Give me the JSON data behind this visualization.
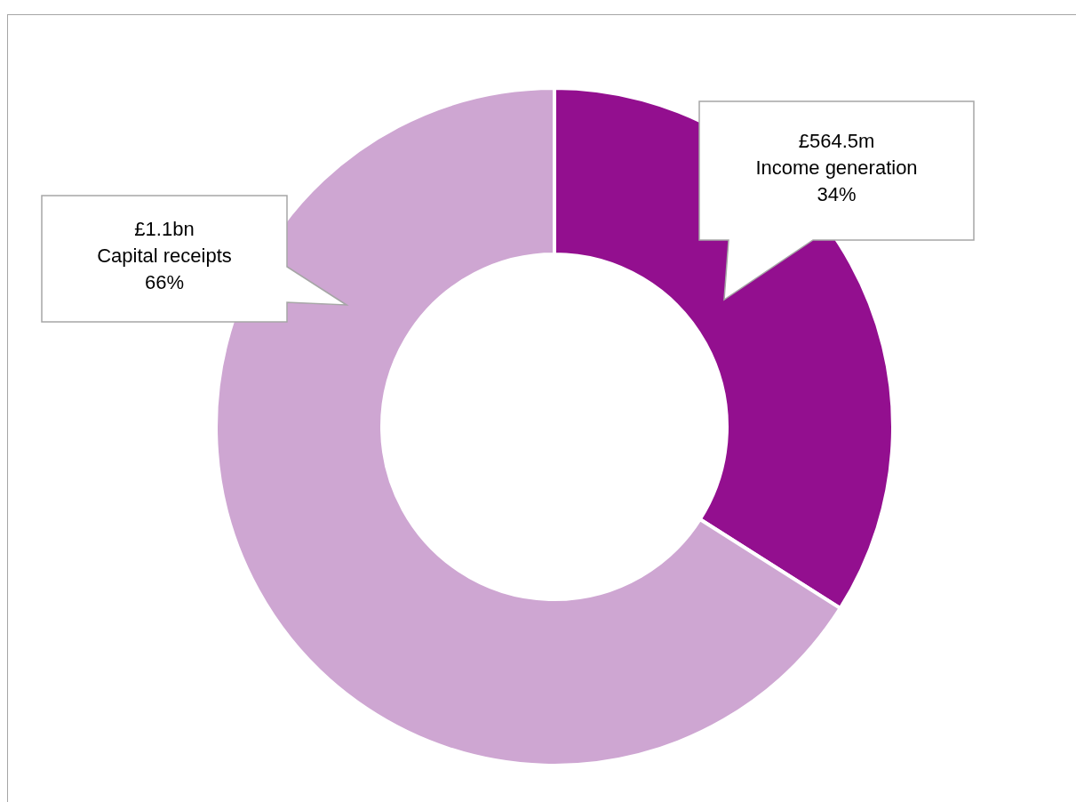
{
  "chart_data": {
    "type": "donut",
    "categories": [
      "Income generation",
      "Capital receipts"
    ],
    "values": [
      34,
      66
    ],
    "colors": [
      "#930f8f",
      "#cea6d2"
    ],
    "value_labels": [
      "34%",
      "66%"
    ],
    "annotations": [
      "£564.5m",
      "£1.1bn"
    ]
  }
}
